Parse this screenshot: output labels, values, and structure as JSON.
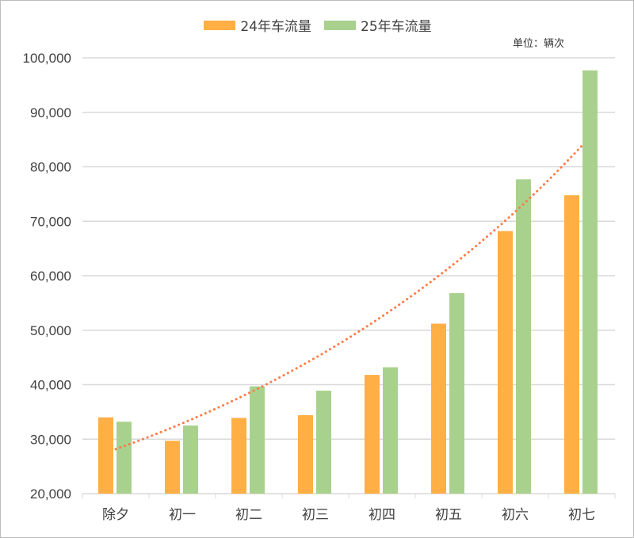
{
  "chart_data": {
    "type": "bar",
    "categories": [
      "除夕",
      "初一",
      "初二",
      "初三",
      "初四",
      "初五",
      "初六",
      "初七"
    ],
    "series": [
      {
        "name": "24年车流量",
        "color": "#FFAF44",
        "values": [
          34000,
          29700,
          33900,
          34400,
          41800,
          51200,
          68200,
          74800
        ]
      },
      {
        "name": "25年车流量",
        "color": "#A9D18E",
        "values": [
          33200,
          32500,
          39700,
          38900,
          43200,
          56800,
          77700,
          97700
        ]
      }
    ],
    "trendline": {
      "type": "exponential",
      "of_series": "25年车流量",
      "color": "#FF7A45",
      "style": "dotted"
    },
    "ylim": [
      20000,
      100000
    ],
    "yticks": [
      "20,000",
      "30,000",
      "40,000",
      "50,000",
      "60,000",
      "70,000",
      "80,000",
      "90,000",
      "100,000"
    ],
    "ytick_values": [
      20000,
      30000,
      40000,
      50000,
      60000,
      70000,
      80000,
      90000,
      100000
    ],
    "unit_label": "单位：辆次",
    "grid": true,
    "legend": "top"
  }
}
